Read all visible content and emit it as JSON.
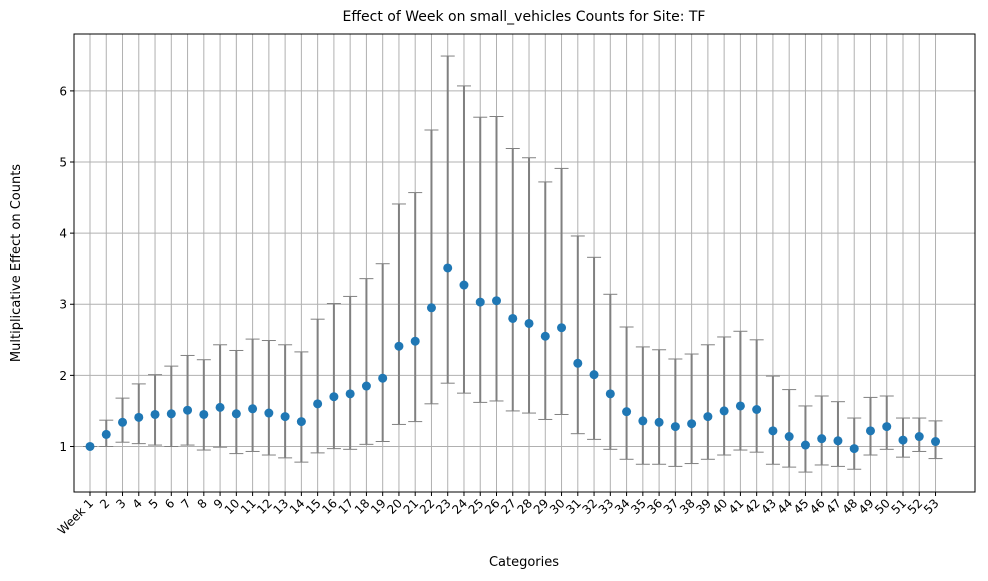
{
  "chart_data": {
    "type": "scatter",
    "title": "Effect of Week on small_vehicles Counts for Site: TF",
    "xlabel": "Categories",
    "ylabel": "Multiplicative Effect on Counts",
    "ylim": [
      0.36,
      6.8
    ],
    "yticks": [
      1,
      2,
      3,
      4,
      5,
      6
    ],
    "grid": true,
    "categories": [
      "Week 1",
      "2",
      "3",
      "4",
      "5",
      "6",
      "7",
      "8",
      "9",
      "10",
      "11",
      "12",
      "13",
      "14",
      "15",
      "16",
      "17",
      "18",
      "19",
      "20",
      "21",
      "22",
      "23",
      "24",
      "25",
      "26",
      "27",
      "28",
      "29",
      "30",
      "31",
      "32",
      "33",
      "34",
      "35",
      "36",
      "37",
      "38",
      "39",
      "40",
      "41",
      "42",
      "43",
      "44",
      "45",
      "46",
      "47",
      "48",
      "49",
      "50",
      "51",
      "52",
      "53"
    ],
    "series": [
      {
        "values": [
          1.0,
          1.17,
          1.34,
          1.41,
          1.45,
          1.46,
          1.51,
          1.45,
          1.55,
          1.46,
          1.53,
          1.47,
          1.42,
          1.35,
          1.6,
          1.7,
          1.74,
          1.85,
          1.96,
          2.41,
          2.48,
          2.95,
          3.51,
          3.27,
          3.03,
          3.05,
          2.8,
          2.73,
          2.55,
          2.67,
          2.17,
          2.01,
          1.74,
          1.49,
          1.36,
          1.34,
          1.28,
          1.32,
          1.42,
          1.5,
          1.57,
          1.52,
          1.22,
          1.14,
          1.02,
          1.11,
          1.08,
          0.97,
          1.22,
          1.28,
          1.09,
          1.14,
          1.07
        ],
        "lower": [
          1.0,
          1.0,
          1.06,
          1.04,
          1.02,
          1.0,
          1.02,
          0.95,
          0.99,
          0.9,
          0.93,
          0.88,
          0.84,
          0.78,
          0.91,
          0.97,
          0.96,
          1.03,
          1.07,
          1.31,
          1.35,
          1.6,
          1.89,
          1.75,
          1.62,
          1.64,
          1.5,
          1.47,
          1.38,
          1.45,
          1.18,
          1.1,
          0.96,
          0.82,
          0.75,
          0.75,
          0.72,
          0.76,
          0.82,
          0.88,
          0.95,
          0.92,
          0.75,
          0.71,
          0.64,
          0.74,
          0.72,
          0.68,
          0.88,
          0.96,
          0.85,
          0.93,
          0.83
        ],
        "upper": [
          1.0,
          1.37,
          1.68,
          1.88,
          2.01,
          2.13,
          2.28,
          2.22,
          2.43,
          2.35,
          2.51,
          2.49,
          2.43,
          2.33,
          2.79,
          3.01,
          3.11,
          3.36,
          3.57,
          4.41,
          4.57,
          5.45,
          6.49,
          6.07,
          5.63,
          5.64,
          5.19,
          5.06,
          4.72,
          4.91,
          3.96,
          3.66,
          3.14,
          2.68,
          2.4,
          2.36,
          2.23,
          2.3,
          2.43,
          2.54,
          2.62,
          2.5,
          1.99,
          1.8,
          1.57,
          1.71,
          1.63,
          1.4,
          1.69,
          1.71,
          1.4,
          1.4,
          1.36
        ]
      }
    ],
    "colors": {
      "point": "#1f77b4",
      "errorbar": "#808080",
      "grid": "#b0b0b0"
    }
  }
}
